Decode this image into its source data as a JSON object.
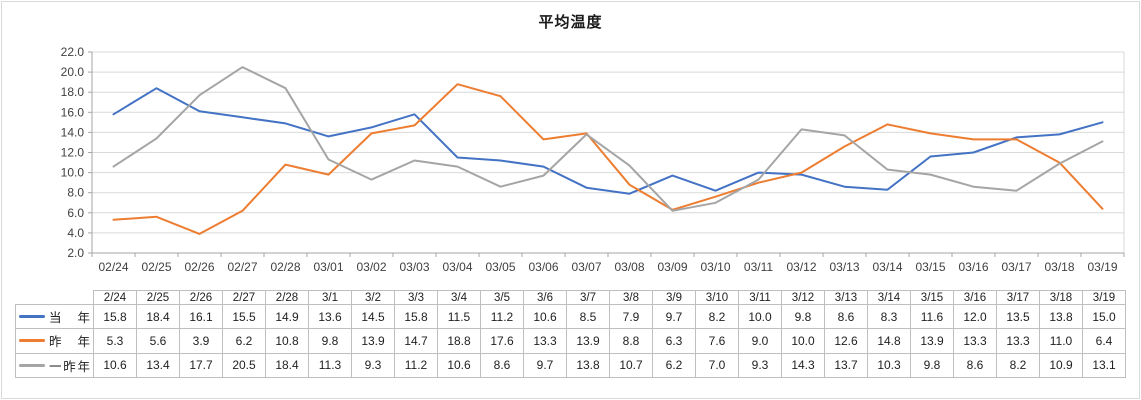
{
  "chart_data": {
    "type": "line",
    "title": "平均温度",
    "x": [
      "02/24",
      "02/25",
      "02/26",
      "02/27",
      "02/28",
      "03/01",
      "03/02",
      "03/03",
      "03/04",
      "03/05",
      "03/06",
      "03/07",
      "03/08",
      "03/09",
      "03/10",
      "03/11",
      "03/12",
      "03/13",
      "03/14",
      "03/15",
      "03/16",
      "03/17",
      "03/18",
      "03/19"
    ],
    "ylim": [
      2.0,
      22.0
    ],
    "y_tick_step": 2.0,
    "y_tick_labels": [
      "2.0",
      "4.0",
      "6.0",
      "8.0",
      "10.0",
      "12.0",
      "14.0",
      "16.0",
      "18.0",
      "20.0",
      "22.0"
    ],
    "grid": "horizontal",
    "legend_position": "table-left-column",
    "series": [
      {
        "name": "当　年",
        "color": "#4472C4",
        "values": [
          15.8,
          18.4,
          16.1,
          15.5,
          14.9,
          13.6,
          14.5,
          15.8,
          11.5,
          11.2,
          10.6,
          8.5,
          7.9,
          9.7,
          8.2,
          10.0,
          9.8,
          8.6,
          8.3,
          11.6,
          12.0,
          13.5,
          13.8,
          15.0
        ]
      },
      {
        "name": "昨　年",
        "color": "#ED7D31",
        "values": [
          5.3,
          5.6,
          3.9,
          6.2,
          10.8,
          9.8,
          13.9,
          14.7,
          18.8,
          17.6,
          13.3,
          13.9,
          8.8,
          6.3,
          7.6,
          9.0,
          10.0,
          12.6,
          14.8,
          13.9,
          13.3,
          13.3,
          11.0,
          6.4
        ]
      },
      {
        "name": "一昨年",
        "color": "#A5A5A5",
        "values": [
          10.6,
          13.4,
          17.7,
          20.5,
          18.4,
          11.3,
          9.3,
          11.2,
          10.6,
          8.6,
          9.7,
          13.8,
          10.7,
          6.2,
          7.0,
          9.3,
          14.3,
          13.7,
          10.3,
          9.8,
          8.6,
          8.2,
          10.9,
          13.1
        ]
      }
    ]
  },
  "table": {
    "columns": [
      "2/24",
      "2/25",
      "2/26",
      "2/27",
      "2/28",
      "3/1",
      "3/2",
      "3/3",
      "3/4",
      "3/5",
      "3/6",
      "3/7",
      "3/8",
      "3/9",
      "3/10",
      "3/11",
      "3/12",
      "3/13",
      "3/14",
      "3/15",
      "3/16",
      "3/17",
      "3/18",
      "3/19"
    ]
  },
  "colors": {
    "gridline": "#d9d9d9",
    "axis": "#a6a6a6",
    "axis_text": "#404040",
    "table_border": "#bfbfbf",
    "title_text": "#1a1a1a"
  }
}
